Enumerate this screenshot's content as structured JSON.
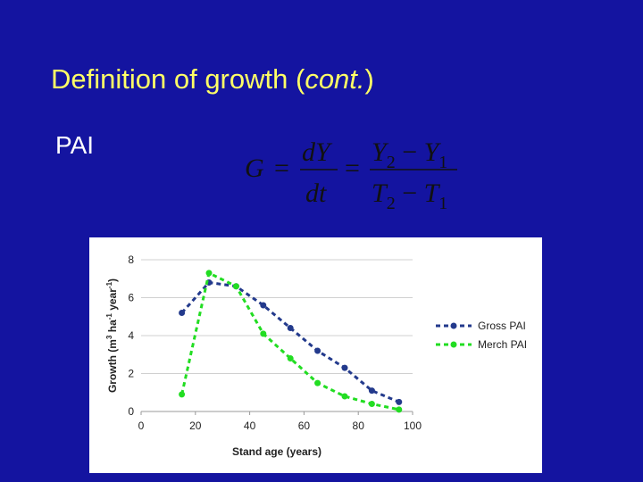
{
  "title": [
    "Definition of growth (",
    "cont.",
    ")"
  ],
  "label": "PAI",
  "formula": {
    "lhs": "G",
    "eq": "=",
    "d_num": "dY",
    "d_den": "dt",
    "num": [
      "Y",
      "2",
      " − ",
      "Y",
      "1"
    ],
    "den": [
      "T",
      "2",
      " − ",
      "T",
      "1"
    ]
  },
  "chart_data": {
    "type": "line",
    "x_label": "Stand age (years)",
    "y_label": [
      "Growth (m",
      "3",
      " ha",
      "-1",
      " year",
      "-1",
      ")"
    ],
    "x": [
      15,
      25,
      35,
      45,
      55,
      65,
      75,
      85,
      95
    ],
    "series": [
      {
        "name": "Gross PAI",
        "color": "#233a8c",
        "values": [
          5.2,
          6.8,
          6.6,
          5.6,
          4.4,
          3.2,
          2.3,
          1.1,
          0.5
        ]
      },
      {
        "name": "Merch PAI",
        "color": "#22dd22",
        "values": [
          0.9,
          7.3,
          6.6,
          4.1,
          2.8,
          1.5,
          0.8,
          0.4,
          0.1
        ]
      }
    ],
    "xlim": [
      0,
      100
    ],
    "xticks": [
      0,
      20,
      40,
      60,
      80,
      100
    ],
    "ylim": [
      0,
      8
    ],
    "yticks": [
      0,
      2,
      4,
      6,
      8
    ],
    "grid": true,
    "legend": "right"
  }
}
